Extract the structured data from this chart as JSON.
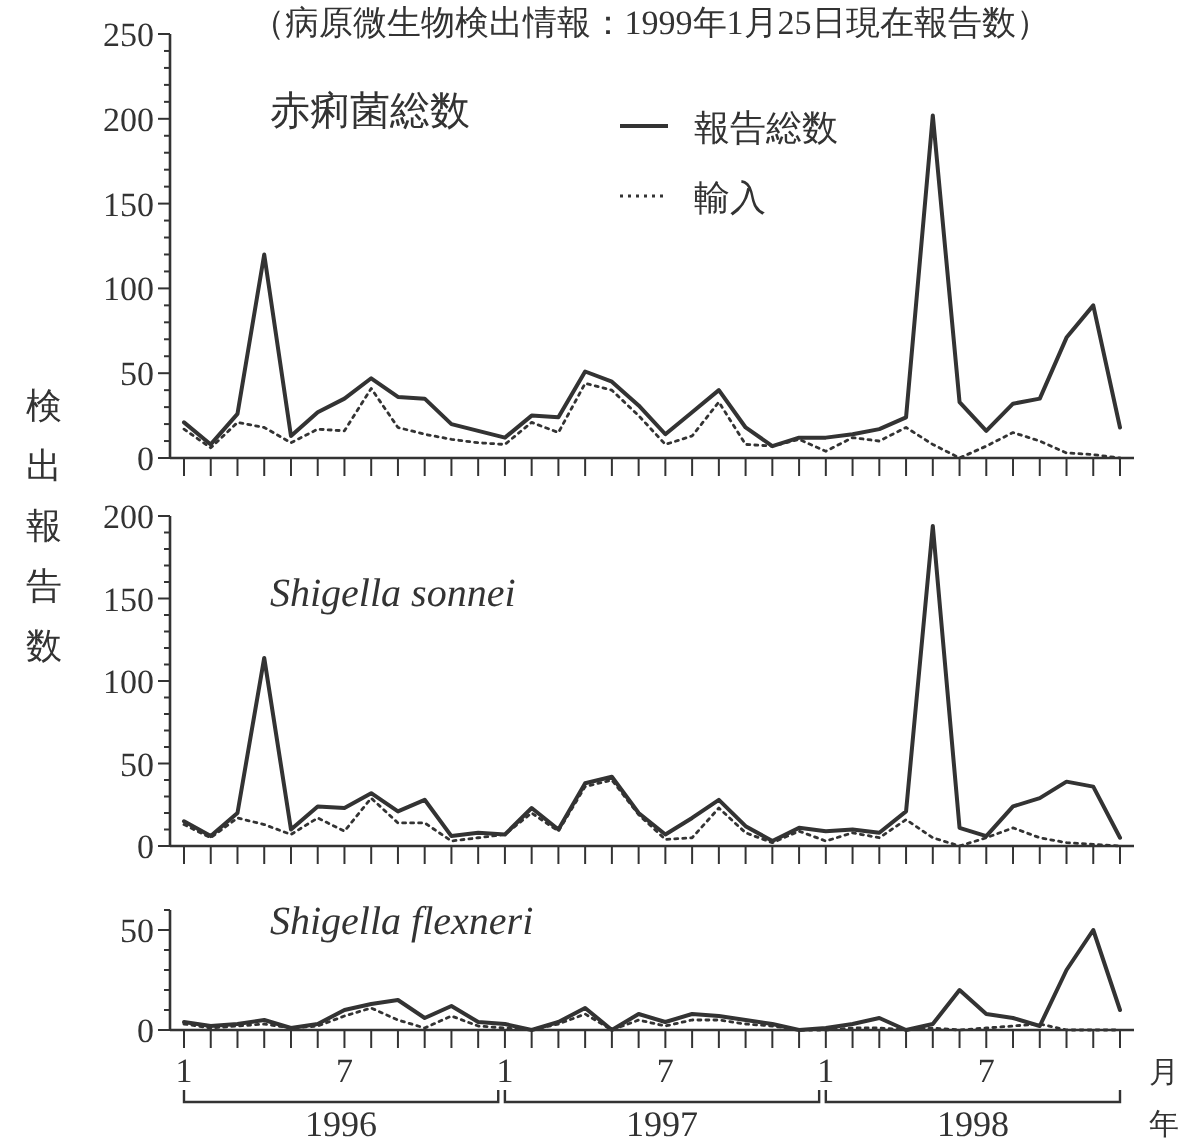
{
  "chart_data": [
    {
      "type": "line",
      "title": "（病原微生物検出情報：1999年1月25日現在報告数）",
      "subtitle": "赤痢菌総数",
      "ylabel": "検出報告数",
      "legend": "top right",
      "tick_labels": "y",
      "categories": [
        "1",
        null,
        null,
        null,
        null,
        null,
        "7",
        null,
        null,
        null,
        null,
        null,
        "1",
        null,
        null,
        null,
        null,
        null,
        "7",
        null,
        null,
        null,
        null,
        null,
        "1",
        null,
        null,
        null,
        null,
        null,
        "7",
        null,
        null,
        null,
        null,
        null
      ],
      "ylim": [
        0,
        250
      ],
      "yticks": [
        0,
        {
          "value": 10,
          "label": null
        },
        {
          "value": 20,
          "label": null
        },
        {
          "value": 30,
          "label": null
        },
        {
          "value": 40,
          "label": null
        },
        50,
        {
          "value": 60,
          "label": null
        },
        {
          "value": 70,
          "label": null
        },
        {
          "value": 80,
          "label": null
        },
        {
          "value": 90,
          "label": null
        },
        100,
        {
          "value": 110,
          "label": null
        },
        {
          "value": 120,
          "label": null
        },
        {
          "value": 130,
          "label": null
        },
        {
          "value": 140,
          "label": null
        },
        150,
        {
          "value": 160,
          "label": null
        },
        {
          "value": 170,
          "label": null
        },
        {
          "value": 180,
          "label": null
        },
        {
          "value": 190,
          "label": null
        },
        200,
        {
          "value": 210,
          "label": null
        },
        {
          "value": 220,
          "label": null
        },
        {
          "value": 230,
          "label": null
        },
        {
          "value": 240,
          "label": null
        },
        250
      ],
      "series": [
        {
          "name": "報告総数",
          "color": "#333333",
          "line_style": "solid",
          "values": [
            21,
            8,
            26,
            120,
            13,
            27,
            35,
            47,
            36,
            35,
            20,
            16,
            12,
            25,
            24,
            51,
            45,
            31,
            14,
            27,
            40,
            18,
            7,
            12,
            12,
            14,
            17,
            24,
            202,
            33,
            16,
            32,
            35,
            71,
            90,
            18
          ]
        },
        {
          "name": "輸入",
          "color": "#333333",
          "line_style": "dotted",
          "values": [
            17,
            6,
            21,
            18,
            9,
            17,
            16,
            41,
            18,
            14,
            11,
            9,
            8,
            21,
            15,
            44,
            40,
            25,
            8,
            13,
            33,
            8,
            7,
            11,
            4,
            12,
            10,
            18,
            8,
            0,
            7,
            15,
            10,
            3,
            2,
            0
          ]
        }
      ]
    },
    {
      "type": "line",
      "subtitle": "Shigella sonnei",
      "tick_labels": "y",
      "categories": [
        "1",
        null,
        null,
        null,
        null,
        null,
        "7",
        null,
        null,
        null,
        null,
        null,
        "1",
        null,
        null,
        null,
        null,
        null,
        "7",
        null,
        null,
        null,
        null,
        null,
        "1",
        null,
        null,
        null,
        null,
        null,
        "7",
        null,
        null,
        null,
        null,
        null
      ],
      "ylim": [
        0,
        200
      ],
      "yticks": [
        0,
        {
          "value": 10,
          "label": null
        },
        {
          "value": 20,
          "label": null
        },
        {
          "value": 30,
          "label": null
        },
        {
          "value": 40,
          "label": null
        },
        50,
        {
          "value": 60,
          "label": null
        },
        {
          "value": 70,
          "label": null
        },
        {
          "value": 80,
          "label": null
        },
        {
          "value": 90,
          "label": null
        },
        100,
        {
          "value": 110,
          "label": null
        },
        {
          "value": 120,
          "label": null
        },
        {
          "value": 130,
          "label": null
        },
        {
          "value": 140,
          "label": null
        },
        150,
        {
          "value": 160,
          "label": null
        },
        {
          "value": 170,
          "label": null
        },
        {
          "value": 180,
          "label": null
        },
        {
          "value": 190,
          "label": null
        },
        200
      ],
      "series": [
        {
          "color": "#333333",
          "line_style": "solid",
          "values": [
            15,
            6,
            20,
            114,
            10,
            24,
            23,
            32,
            21,
            28,
            6,
            8,
            7,
            23,
            10,
            38,
            42,
            20,
            7,
            17,
            28,
            12,
            3,
            11,
            9,
            10,
            8,
            21,
            194,
            11,
            6,
            24,
            29,
            39,
            36,
            5
          ]
        },
        {
          "color": "#333333",
          "line_style": "dotted",
          "values": [
            13,
            5,
            17,
            13,
            7,
            17,
            9,
            29,
            14,
            14,
            3,
            5,
            7,
            20,
            9,
            36,
            40,
            19,
            4,
            5,
            23,
            8,
            2,
            9,
            3,
            8,
            5,
            16,
            5,
            0,
            5,
            11,
            5,
            2,
            1,
            0
          ]
        }
      ]
    },
    {
      "type": "line",
      "subtitle": "Shigella flexneri",
      "annotations": [
        "1996",
        "1997",
        "1998",
        "月",
        "年"
      ],
      "categories": [
        "1",
        null,
        null,
        null,
        null,
        null,
        "7",
        null,
        null,
        null,
        null,
        null,
        "1",
        null,
        null,
        null,
        null,
        null,
        "7",
        null,
        null,
        null,
        null,
        null,
        "1",
        null,
        null,
        null,
        null,
        null,
        "7",
        null,
        null,
        null,
        null,
        null
      ],
      "ylim": [
        0,
        60
      ],
      "yticks": [
        0,
        {
          "value": 10,
          "label": null
        },
        {
          "value": 20,
          "label": null
        },
        {
          "value": 30,
          "label": null
        },
        {
          "value": 40,
          "label": null
        },
        50,
        {
          "value": 60,
          "label": null
        }
      ],
      "series": [
        {
          "color": "#333333",
          "line_style": "solid",
          "values": [
            4,
            2,
            3,
            5,
            1,
            3,
            10,
            13,
            15,
            6,
            12,
            4,
            3,
            0,
            4,
            11,
            0,
            8,
            4,
            8,
            7,
            5,
            3,
            0,
            1,
            3,
            6,
            0,
            3,
            20,
            8,
            6,
            2,
            30,
            50,
            10
          ]
        },
        {
          "color": "#333333",
          "line_style": "dotted",
          "values": [
            3,
            1,
            2,
            3,
            1,
            2,
            7,
            11,
            5,
            1,
            7,
            2,
            1,
            0,
            3,
            8,
            0,
            5,
            2,
            5,
            5,
            3,
            2,
            0,
            0,
            1,
            1,
            0,
            1,
            0,
            1,
            2,
            3,
            0,
            0,
            0
          ]
        }
      ]
    }
  ]
}
